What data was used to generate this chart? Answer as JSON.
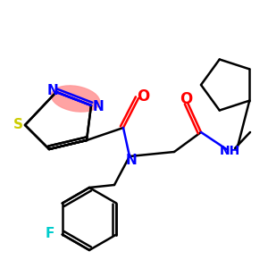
{
  "bg_color": "#ffffff",
  "atom_colors": {
    "N": "#0000ff",
    "O": "#ff0000",
    "S": "#cccc00",
    "F": "#00cccc",
    "C": "#000000"
  },
  "highlight_color": "#ff9999",
  "figsize": [
    3.0,
    3.0
  ],
  "dpi": 100
}
